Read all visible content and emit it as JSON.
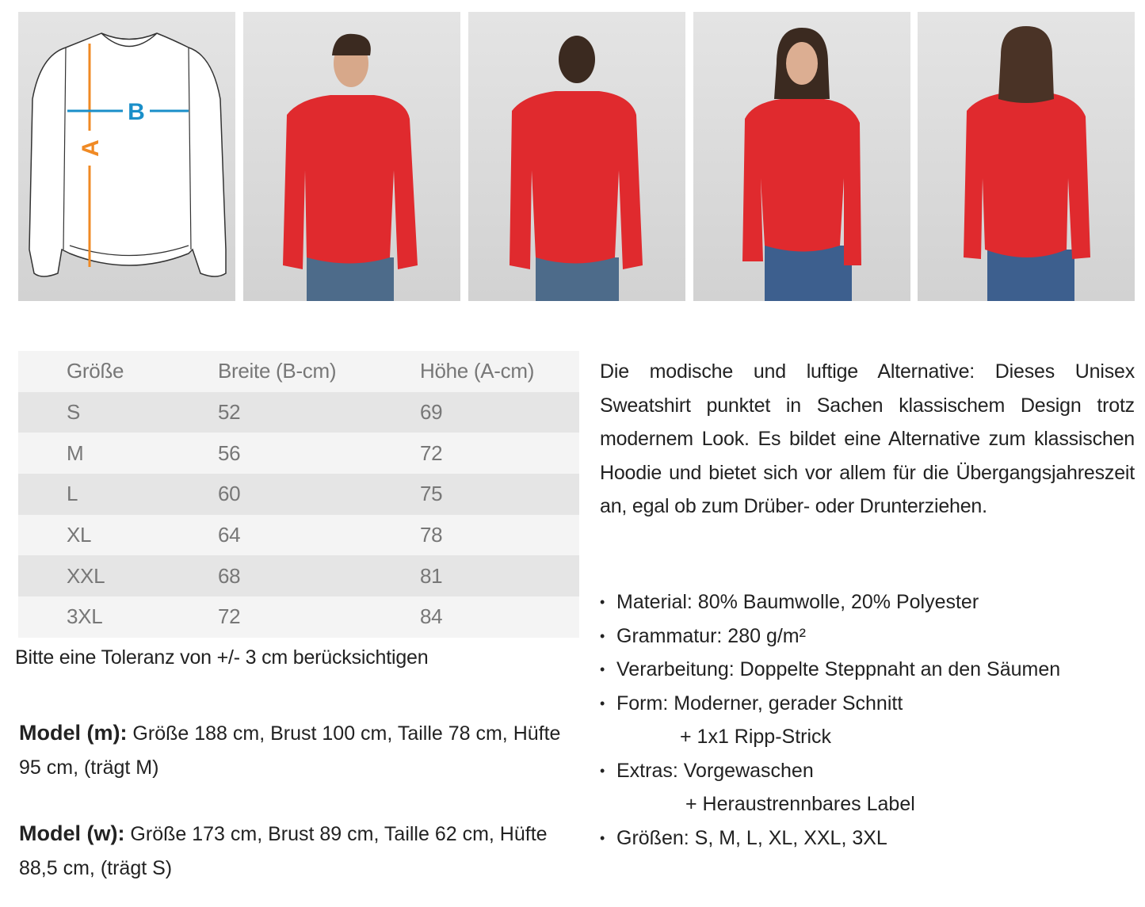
{
  "diagram": {
    "label_a": "A",
    "label_b": "B",
    "color_a": "#f08a24",
    "color_b": "#1a8fc9"
  },
  "photos": [
    {
      "name": "male-model-front",
      "icon": "photo"
    },
    {
      "name": "male-model-back",
      "icon": "photo"
    },
    {
      "name": "female-model-front",
      "icon": "photo"
    },
    {
      "name": "female-model-back",
      "icon": "photo"
    }
  ],
  "product_color": "#e02a2e",
  "size_table": {
    "headers": [
      "Größe",
      "Breite (B-cm)",
      "Höhe (A-cm)"
    ],
    "rows": [
      [
        "S",
        "52",
        "69"
      ],
      [
        "M",
        "56",
        "72"
      ],
      [
        "L",
        "60",
        "75"
      ],
      [
        "XL",
        "64",
        "78"
      ],
      [
        "XXL",
        "68",
        "81"
      ],
      [
        "3XL",
        "72",
        "84"
      ]
    ]
  },
  "tolerance": "Bitte eine Toleranz von +/- 3 cm berücksichtigen",
  "model_m": {
    "label": "Model (m):",
    "text": " Größe 188 cm, Brust 100 cm, Taille 78 cm, Hüfte 95 cm, (trägt M)"
  },
  "model_w": {
    "label": "Model (w):",
    "text": " Größe 173 cm, Brust 89 cm, Taille 62 cm, Hüfte 88,5 cm, (trägt S)"
  },
  "description": "Die modische und luftige Alternative: Dieses Unisex Sweatshirt punktet in Sachen klassischem Design trotz modernem Look. Es bildet eine Alternative zum klassischen Hoodie und bietet sich vor allem für die Übergangsjahreszeit an, egal ob zum Drüber- oder Drunterziehen.",
  "specs": [
    "Material: 80% Baumwolle, 20% Polyester",
    "Grammatur: 280 g/m²",
    "Verarbeitung: Doppelte Steppnaht an den Säumen",
    "Form: Moderner, gerader Schnitt",
    "+ 1x1 Ripp-Strick",
    "Extras: Vorgewaschen",
    "+ Heraustrennbares Label",
    "Größen:  S, M, L, XL, XXL, 3XL"
  ]
}
